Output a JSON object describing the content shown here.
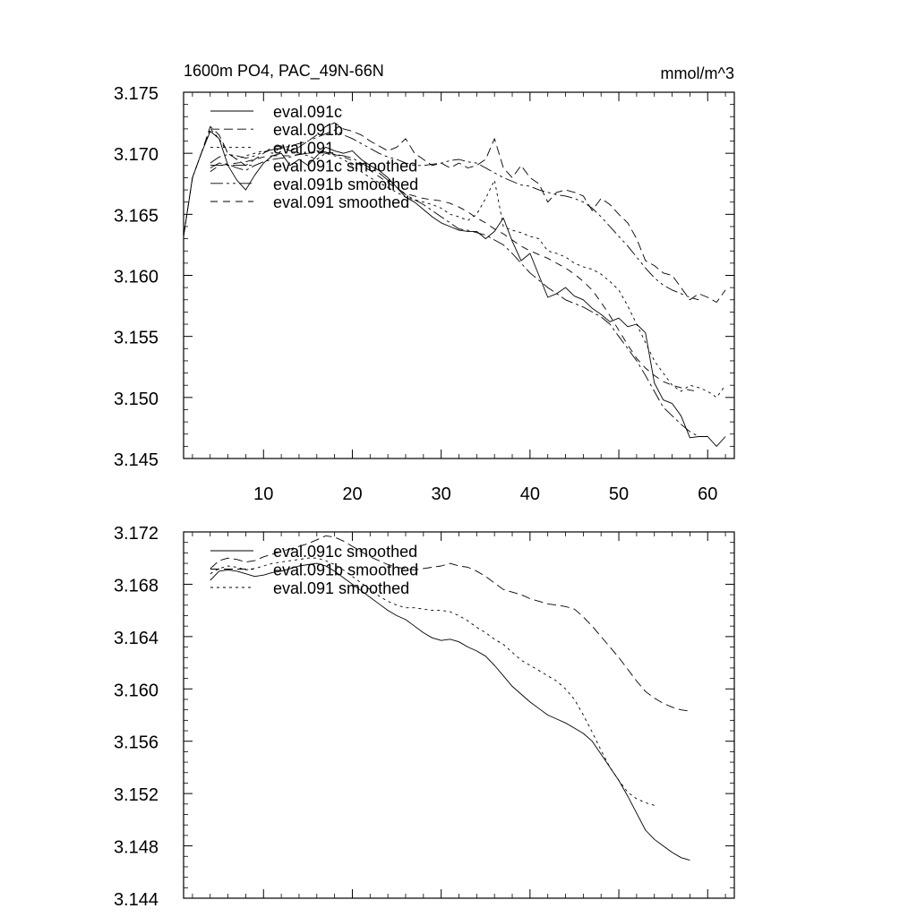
{
  "chart_data": [
    {
      "type": "line",
      "title": "1600m PO4, PAC_49N-66N",
      "units": "mmol/m^3",
      "xlim": [
        1,
        63
      ],
      "ylim": [
        3.145,
        3.175
      ],
      "xticks": [
        10,
        20,
        30,
        40,
        50,
        60
      ],
      "yticks": [
        3.145,
        3.15,
        3.155,
        3.16,
        3.165,
        3.17,
        3.175
      ],
      "ytick_labels": [
        "3.145",
        "3.150",
        "3.155",
        "3.160",
        "3.165",
        "3.170",
        "3.175"
      ],
      "legend_position": "top-left",
      "series": [
        {
          "name": "eval.091c",
          "dash": "solid",
          "x_start": 1,
          "values": [
            3.1632,
            3.168,
            3.17,
            3.1718,
            3.1712,
            3.169,
            3.1678,
            3.167,
            3.1682,
            3.1692,
            3.1698,
            3.17,
            3.169,
            3.1695,
            3.169,
            3.1698,
            3.1705,
            3.1702,
            3.17,
            3.1702,
            3.1695,
            3.169,
            3.1686,
            3.168,
            3.1672,
            3.1664,
            3.166,
            3.1654,
            3.1648,
            3.1643,
            3.164,
            3.1637,
            3.1636,
            3.1636,
            3.163,
            3.1636,
            3.1647,
            3.1628,
            3.1612,
            3.1618,
            3.16,
            3.1582,
            3.1585,
            3.159,
            3.1583,
            3.158,
            3.1573,
            3.1568,
            3.1562,
            3.1565,
            3.1558,
            3.156,
            3.1553,
            3.1512,
            3.1498,
            3.1495,
            3.1485,
            3.1467,
            3.1468,
            3.1468,
            3.146,
            3.1468
          ]
        },
        {
          "name": "eval.091b",
          "dash": "10,5",
          "x_start": 1,
          "values": [
            3.1632,
            3.168,
            3.17,
            3.1722,
            3.1715,
            3.17,
            3.1695,
            3.169,
            3.1695,
            3.17,
            3.1705,
            3.1706,
            3.1702,
            3.1705,
            3.171,
            3.1715,
            3.1722,
            3.1725,
            3.172,
            3.1718,
            3.1715,
            3.171,
            3.1706,
            3.1702,
            3.1705,
            3.1712,
            3.17,
            3.1695,
            3.169,
            3.1692,
            3.1688,
            3.1692,
            3.1688,
            3.169,
            3.1695,
            3.1712,
            3.1688,
            3.168,
            3.169,
            3.168,
            3.1675,
            3.166,
            3.1668,
            3.167,
            3.1668,
            3.1665,
            3.1653,
            3.1663,
            3.1658,
            3.165,
            3.1643,
            3.163,
            3.1612,
            3.1608,
            3.1602,
            3.16,
            3.159,
            3.158,
            3.1585,
            3.1582,
            3.1578,
            3.1588
          ]
        },
        {
          "name": "eval.091",
          "dash": "3,4",
          "x_start": 1,
          "values": [
            3.1632,
            3.168,
            3.17,
            3.172,
            3.1712,
            3.17,
            3.1695,
            3.1698,
            3.17,
            3.1702,
            3.17,
            3.1705,
            3.1702,
            3.17,
            3.1698,
            3.1695,
            3.17,
            3.1698,
            3.1695,
            3.169,
            3.1685,
            3.168,
            3.1676,
            3.1672,
            3.1668,
            3.1664,
            3.1662,
            3.166,
            3.1658,
            3.1655,
            3.165,
            3.1648,
            3.1645,
            3.165,
            3.1663,
            3.1678,
            3.164,
            3.1637,
            3.1635,
            3.1632,
            3.163,
            3.162,
            3.1618,
            3.1615,
            3.161,
            3.1607,
            3.1605,
            3.1601,
            3.1595,
            3.1588,
            3.1575,
            3.156,
            3.1545,
            3.153,
            3.152,
            3.151,
            3.1505,
            3.151,
            3.1508,
            3.1505,
            3.15,
            3.151
          ]
        },
        {
          "name": "eval.091c smoothed",
          "dash": "14,4,3,4",
          "x_start": 4,
          "values": [
            3.1688,
            3.1692,
            3.1691,
            3.1688,
            3.1686,
            3.169,
            3.1693,
            3.1695,
            3.1696,
            3.1697,
            3.1699,
            3.17,
            3.1702,
            3.1701,
            3.1699,
            3.1698,
            3.1696,
            3.1692,
            3.1688,
            3.1684,
            3.1678,
            3.1672,
            3.1666,
            3.1662,
            3.1658,
            3.1653,
            3.1648,
            3.1643,
            3.1638,
            3.1637,
            3.1635,
            3.1633,
            3.1629,
            3.1625,
            3.1618,
            3.161,
            3.1602,
            3.1596,
            3.159,
            3.1585,
            3.158,
            3.1577,
            3.1574,
            3.157,
            3.1566,
            3.156,
            3.155,
            3.154,
            3.153,
            3.1518,
            3.1505,
            3.1492,
            3.1485,
            3.1478,
            3.1472,
            3.1468
          ]
        },
        {
          "name": "eval.091b smoothed",
          "dash": "14,4,3,4,3,4",
          "x_start": 4,
          "values": [
            3.1692,
            3.1697,
            3.1699,
            3.1698,
            3.1696,
            3.1698,
            3.1701,
            3.1703,
            3.1704,
            3.1706,
            3.1708,
            3.171,
            3.1713,
            3.1716,
            3.1719,
            3.1715,
            3.1712,
            3.1708,
            3.1704,
            3.17,
            3.1697,
            3.1695,
            3.1692,
            3.169,
            3.169,
            3.1691,
            3.1692,
            3.1694,
            3.1695,
            3.1693,
            3.1692,
            3.1688,
            3.1684,
            3.168,
            3.1677,
            3.1674,
            3.1673,
            3.167,
            3.1668,
            3.1666,
            3.1665,
            3.1663,
            3.166,
            3.1655,
            3.1648,
            3.164,
            3.1632,
            3.1624,
            3.1615,
            3.1606,
            3.1598,
            3.1592,
            3.1588,
            3.1585,
            3.1582,
            3.158
          ]
        },
        {
          "name": "eval.091 smoothed",
          "dash": "8,6",
          "x_start": 4,
          "values": [
            3.1685,
            3.169,
            3.1691,
            3.1692,
            3.1693,
            3.1695,
            3.1697,
            3.1698,
            3.1698,
            3.1698,
            3.1699,
            3.17,
            3.1701,
            3.17,
            3.1699,
            3.1697,
            3.1694,
            3.169,
            3.1686,
            3.1681,
            3.1676,
            3.1671,
            3.1667,
            3.1665,
            3.1663,
            3.1662,
            3.1661,
            3.1659,
            3.1656,
            3.1652,
            3.1647,
            3.1643,
            3.1638,
            3.1634,
            3.1629,
            3.1624,
            3.162,
            3.1617,
            3.1614,
            3.161,
            3.1606,
            3.1601,
            3.1595,
            3.1588,
            3.1578,
            3.1567,
            3.1555,
            3.1543,
            3.1532,
            3.1524,
            3.1518,
            3.1513,
            3.151,
            3.1508,
            3.1506,
            3.1505
          ]
        }
      ]
    },
    {
      "type": "line",
      "title": "",
      "xlim": [
        1,
        63
      ],
      "ylim": [
        3.144,
        3.172
      ],
      "xticks": [
        10,
        20,
        30,
        40,
        50,
        60
      ],
      "yticks": [
        3.144,
        3.148,
        3.152,
        3.156,
        3.16,
        3.164,
        3.168,
        3.172
      ],
      "ytick_labels": [
        "3.144",
        "3.148",
        "3.152",
        "3.156",
        "3.160",
        "3.164",
        "3.168",
        "3.172"
      ],
      "legend_position": "top-left",
      "series": [
        {
          "name": "eval.091c smoothed",
          "dash": "solid",
          "x_start": 4,
          "values": [
            3.1683,
            3.169,
            3.1691,
            3.169,
            3.1688,
            3.1686,
            3.1687,
            3.1689,
            3.169,
            3.1692,
            3.1694,
            3.1695,
            3.1696,
            3.1694,
            3.169,
            3.1685,
            3.168,
            3.1675,
            3.167,
            3.1665,
            3.166,
            3.1656,
            3.1653,
            3.1648,
            3.1643,
            3.1639,
            3.1637,
            3.1638,
            3.1636,
            3.1632,
            3.1629,
            3.1625,
            3.1618,
            3.161,
            3.1602,
            3.1596,
            3.159,
            3.1585,
            3.158,
            3.1577,
            3.1574,
            3.157,
            3.1566,
            3.156,
            3.155,
            3.154,
            3.153,
            3.1518,
            3.1505,
            3.1492,
            3.1485,
            3.148,
            3.1475,
            3.1471,
            3.1469
          ]
        },
        {
          "name": "eval.091b smoothed",
          "dash": "10,5",
          "x_start": 4,
          "values": [
            3.1692,
            3.1698,
            3.17,
            3.1699,
            3.1697,
            3.1698,
            3.1701,
            3.1703,
            3.1705,
            3.1707,
            3.1709,
            3.1711,
            3.1714,
            3.1717,
            3.1716,
            3.1713,
            3.1709,
            3.1705,
            3.1701,
            3.1698,
            3.1695,
            3.1693,
            3.1692,
            3.1691,
            3.1692,
            3.1693,
            3.1694,
            3.1696,
            3.1694,
            3.1693,
            3.169,
            3.1686,
            3.1681,
            3.1676,
            3.1674,
            3.1672,
            3.1669,
            3.1667,
            3.1665,
            3.1664,
            3.1663,
            3.1661,
            3.1655,
            3.1648,
            3.164,
            3.1632,
            3.1624,
            3.1615,
            3.1606,
            3.1598,
            3.1593,
            3.1589,
            3.1586,
            3.1584,
            3.1583
          ]
        },
        {
          "name": "eval.091 smoothed",
          "dash": "3,4",
          "x_start": 4,
          "values": [
            3.1688,
            3.1692,
            3.1694,
            3.1693,
            3.1691,
            3.1692,
            3.1694,
            3.1696,
            3.1697,
            3.1698,
            3.1699,
            3.17,
            3.17,
            3.1698,
            3.1695,
            3.1691,
            3.1686,
            3.1681,
            3.1676,
            3.1671,
            3.1667,
            3.1664,
            3.1662,
            3.1662,
            3.1661,
            3.166,
            3.166,
            3.1659,
            3.1656,
            3.1652,
            3.1647,
            3.1643,
            3.1638,
            3.1634,
            3.1628,
            3.1622,
            3.1618,
            3.1614,
            3.161,
            3.1606,
            3.16,
            3.1592,
            3.158,
            3.1567,
            3.1553,
            3.154,
            3.153,
            3.1521,
            3.1516,
            3.1513,
            3.1511
          ]
        }
      ]
    }
  ]
}
